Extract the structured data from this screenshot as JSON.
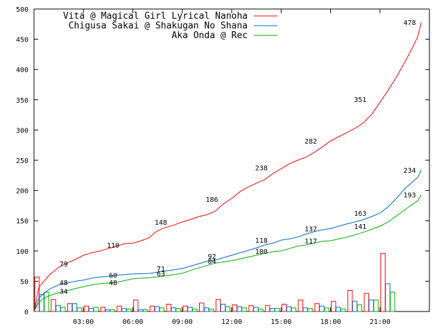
{
  "chart_data": {
    "type": "line",
    "title": "",
    "xlabel": "",
    "ylabel": "",
    "ylim": [
      0,
      500
    ],
    "xlim": [
      0,
      24
    ],
    "y_ticks": [
      "0",
      "50",
      "100",
      "150",
      "200",
      "250",
      "300",
      "350",
      "400",
      "450",
      "500"
    ],
    "x_ticks": [
      {
        "label": "03:00",
        "x": 3
      },
      {
        "label": "06:00",
        "x": 6
      },
      {
        "label": "09:00",
        "x": 9
      },
      {
        "label": "12:00",
        "x": 12
      },
      {
        "label": "15:00",
        "x": 15
      },
      {
        "label": "18:00",
        "x": 18
      },
      {
        "label": "21:00",
        "x": 21
      }
    ],
    "grid": false,
    "legend_position": "top-right",
    "series": [
      {
        "name": "Vita @ Magical Girl Lyrical Nanoha",
        "color": "#ff0000",
        "points": [
          [
            0,
            0
          ],
          [
            0.3,
            40
          ],
          [
            0.6,
            50
          ],
          [
            1,
            62
          ],
          [
            1.5,
            73
          ],
          [
            2,
            80
          ],
          [
            2.5,
            86
          ],
          [
            3,
            93
          ],
          [
            3.5,
            97
          ],
          [
            4,
            100
          ],
          [
            4.5,
            104
          ],
          [
            5,
            108
          ],
          [
            5.5,
            112
          ],
          [
            6,
            113
          ],
          [
            6.5,
            117
          ],
          [
            7,
            122
          ],
          [
            7.3,
            130
          ],
          [
            7.7,
            136
          ],
          [
            8,
            139
          ],
          [
            8.5,
            143
          ],
          [
            9,
            148
          ],
          [
            9.5,
            152
          ],
          [
            10,
            157
          ],
          [
            10.5,
            160
          ],
          [
            11,
            166
          ],
          [
            11.5,
            178
          ],
          [
            12,
            187
          ],
          [
            12.5,
            198
          ],
          [
            13,
            206
          ],
          [
            13.5,
            212
          ],
          [
            14,
            218
          ],
          [
            14.5,
            228
          ],
          [
            15,
            236
          ],
          [
            15.5,
            244
          ],
          [
            16,
            250
          ],
          [
            16.5,
            255
          ],
          [
            17,
            263
          ],
          [
            17.5,
            272
          ],
          [
            18,
            282
          ],
          [
            18.5,
            289
          ],
          [
            19,
            296
          ],
          [
            19.5,
            303
          ],
          [
            20,
            312
          ],
          [
            20.5,
            326
          ],
          [
            21,
            346
          ],
          [
            21.5,
            366
          ],
          [
            22,
            388
          ],
          [
            22.5,
            412
          ],
          [
            23,
            438
          ],
          [
            23.3,
            455
          ],
          [
            23.5,
            478
          ]
        ],
        "labels": [
          {
            "x": 1.8,
            "y": 79,
            "text": "79"
          },
          {
            "x": 4.8,
            "y": 110,
            "text": "110"
          },
          {
            "x": 7.7,
            "y": 148,
            "text": "148"
          },
          {
            "x": 10.8,
            "y": 186,
            "text": "186"
          },
          {
            "x": 13.8,
            "y": 238,
            "text": "238"
          },
          {
            "x": 16.8,
            "y": 282,
            "text": "282"
          },
          {
            "x": 19.8,
            "y": 351,
            "text": "351"
          },
          {
            "x": 22.8,
            "y": 478,
            "text": "478"
          }
        ]
      },
      {
        "name": "Chigusa Sakai @ Shakugan No Shana",
        "color": "#0066cc",
        "points": [
          [
            0,
            0
          ],
          [
            0.3,
            22
          ],
          [
            0.6,
            30
          ],
          [
            1,
            38
          ],
          [
            1.5,
            44
          ],
          [
            2,
            47
          ],
          [
            2.5,
            50
          ],
          [
            3,
            52
          ],
          [
            3.5,
            55
          ],
          [
            4,
            57
          ],
          [
            4.5,
            58
          ],
          [
            5,
            60
          ],
          [
            5.5,
            61
          ],
          [
            6,
            62
          ],
          [
            7,
            63
          ],
          [
            8,
            67
          ],
          [
            9,
            71
          ],
          [
            9.5,
            75
          ],
          [
            10,
            79
          ],
          [
            10.5,
            83
          ],
          [
            11,
            85
          ],
          [
            11.5,
            89
          ],
          [
            12,
            93
          ],
          [
            12.5,
            97
          ],
          [
            13,
            101
          ],
          [
            13.5,
            105
          ],
          [
            14,
            110
          ],
          [
            14.5,
            113
          ],
          [
            15,
            118
          ],
          [
            15.5,
            120
          ],
          [
            16,
            123
          ],
          [
            16.5,
            128
          ],
          [
            17,
            132
          ],
          [
            17.5,
            135
          ],
          [
            18,
            137
          ],
          [
            18.5,
            141
          ],
          [
            19,
            145
          ],
          [
            19.5,
            148
          ],
          [
            20,
            152
          ],
          [
            20.5,
            157
          ],
          [
            21,
            163
          ],
          [
            21.5,
            173
          ],
          [
            22,
            187
          ],
          [
            22.5,
            203
          ],
          [
            23,
            215
          ],
          [
            23.3,
            222
          ],
          [
            23.5,
            234
          ]
        ],
        "labels": [
          {
            "x": 1.8,
            "y": 48,
            "text": "48"
          },
          {
            "x": 4.8,
            "y": 60,
            "text": "60"
          },
          {
            "x": 7.7,
            "y": 71,
            "text": "71"
          },
          {
            "x": 10.8,
            "y": 92,
            "text": "92"
          },
          {
            "x": 13.8,
            "y": 118,
            "text": "118"
          },
          {
            "x": 16.8,
            "y": 137,
            "text": "137"
          },
          {
            "x": 19.8,
            "y": 163,
            "text": "163"
          },
          {
            "x": 22.8,
            "y": 234,
            "text": "234"
          }
        ]
      },
      {
        "name": "Aka Onda @ Rec",
        "color": "#00aa00",
        "points": [
          [
            0,
            0
          ],
          [
            0.3,
            15
          ],
          [
            0.6,
            22
          ],
          [
            1,
            27
          ],
          [
            1.5,
            31
          ],
          [
            2,
            34
          ],
          [
            2.5,
            38
          ],
          [
            3,
            41
          ],
          [
            3.5,
            44
          ],
          [
            4,
            46
          ],
          [
            4.5,
            47
          ],
          [
            5,
            48
          ],
          [
            5.5,
            51
          ],
          [
            6,
            54
          ],
          [
            7,
            56
          ],
          [
            8,
            59
          ],
          [
            9,
            63
          ],
          [
            9.5,
            68
          ],
          [
            10,
            72
          ],
          [
            10.5,
            76
          ],
          [
            11,
            80
          ],
          [
            11.5,
            82
          ],
          [
            12,
            84
          ],
          [
            12.5,
            87
          ],
          [
            13,
            90
          ],
          [
            13.5,
            93
          ],
          [
            14,
            96
          ],
          [
            14.5,
            99
          ],
          [
            15,
            100
          ],
          [
            15.5,
            104
          ],
          [
            16,
            108
          ],
          [
            16.5,
            110
          ],
          [
            17,
            113
          ],
          [
            17.5,
            116
          ],
          [
            18,
            117
          ],
          [
            18.5,
            120
          ],
          [
            19,
            123
          ],
          [
            19.5,
            127
          ],
          [
            20,
            131
          ],
          [
            20.5,
            136
          ],
          [
            21,
            141
          ],
          [
            21.5,
            148
          ],
          [
            22,
            158
          ],
          [
            22.5,
            168
          ],
          [
            23,
            178
          ],
          [
            23.3,
            183
          ],
          [
            23.5,
            193
          ]
        ],
        "labels": [
          {
            "x": 1.8,
            "y": 34,
            "text": "34"
          },
          {
            "x": 4.8,
            "y": 48,
            "text": "48"
          },
          {
            "x": 7.7,
            "y": 63,
            "text": "63"
          },
          {
            "x": 10.8,
            "y": 84,
            "text": "84"
          },
          {
            "x": 13.8,
            "y": 100,
            "text": "100"
          },
          {
            "x": 16.8,
            "y": 117,
            "text": "117"
          },
          {
            "x": 19.8,
            "y": 141,
            "text": "141"
          },
          {
            "x": 22.8,
            "y": 193,
            "text": "193"
          }
        ]
      }
    ],
    "bars": {
      "bin_width_hours": 1,
      "series": [
        {
          "name": "Vita @ Magical Girl Lyrical Nanoha",
          "color": "#ff0000",
          "values": [
            57,
            20,
            13,
            9,
            7,
            9,
            19,
            9,
            12,
            9,
            14,
            20,
            11,
            10,
            10,
            12,
            19,
            13,
            17,
            35,
            30,
            96,
            0,
            0
          ]
        },
        {
          "name": "Chigusa Sakai @ Shakugan No Shana",
          "color": "#0066cc",
          "values": [
            28,
            10,
            13,
            5,
            3,
            5,
            3,
            8,
            6,
            7,
            6,
            12,
            8,
            7,
            5,
            8,
            6,
            9,
            7,
            17,
            19,
            46,
            0,
            0
          ]
        },
        {
          "name": "Aka Onda @ Rec",
          "color": "#00aa00",
          "values": [
            32,
            7,
            6,
            7,
            3,
            4,
            3,
            6,
            5,
            4,
            4,
            8,
            6,
            4,
            5,
            6,
            5,
            6,
            4,
            11,
            19,
            32,
            0,
            0
          ]
        }
      ]
    }
  }
}
